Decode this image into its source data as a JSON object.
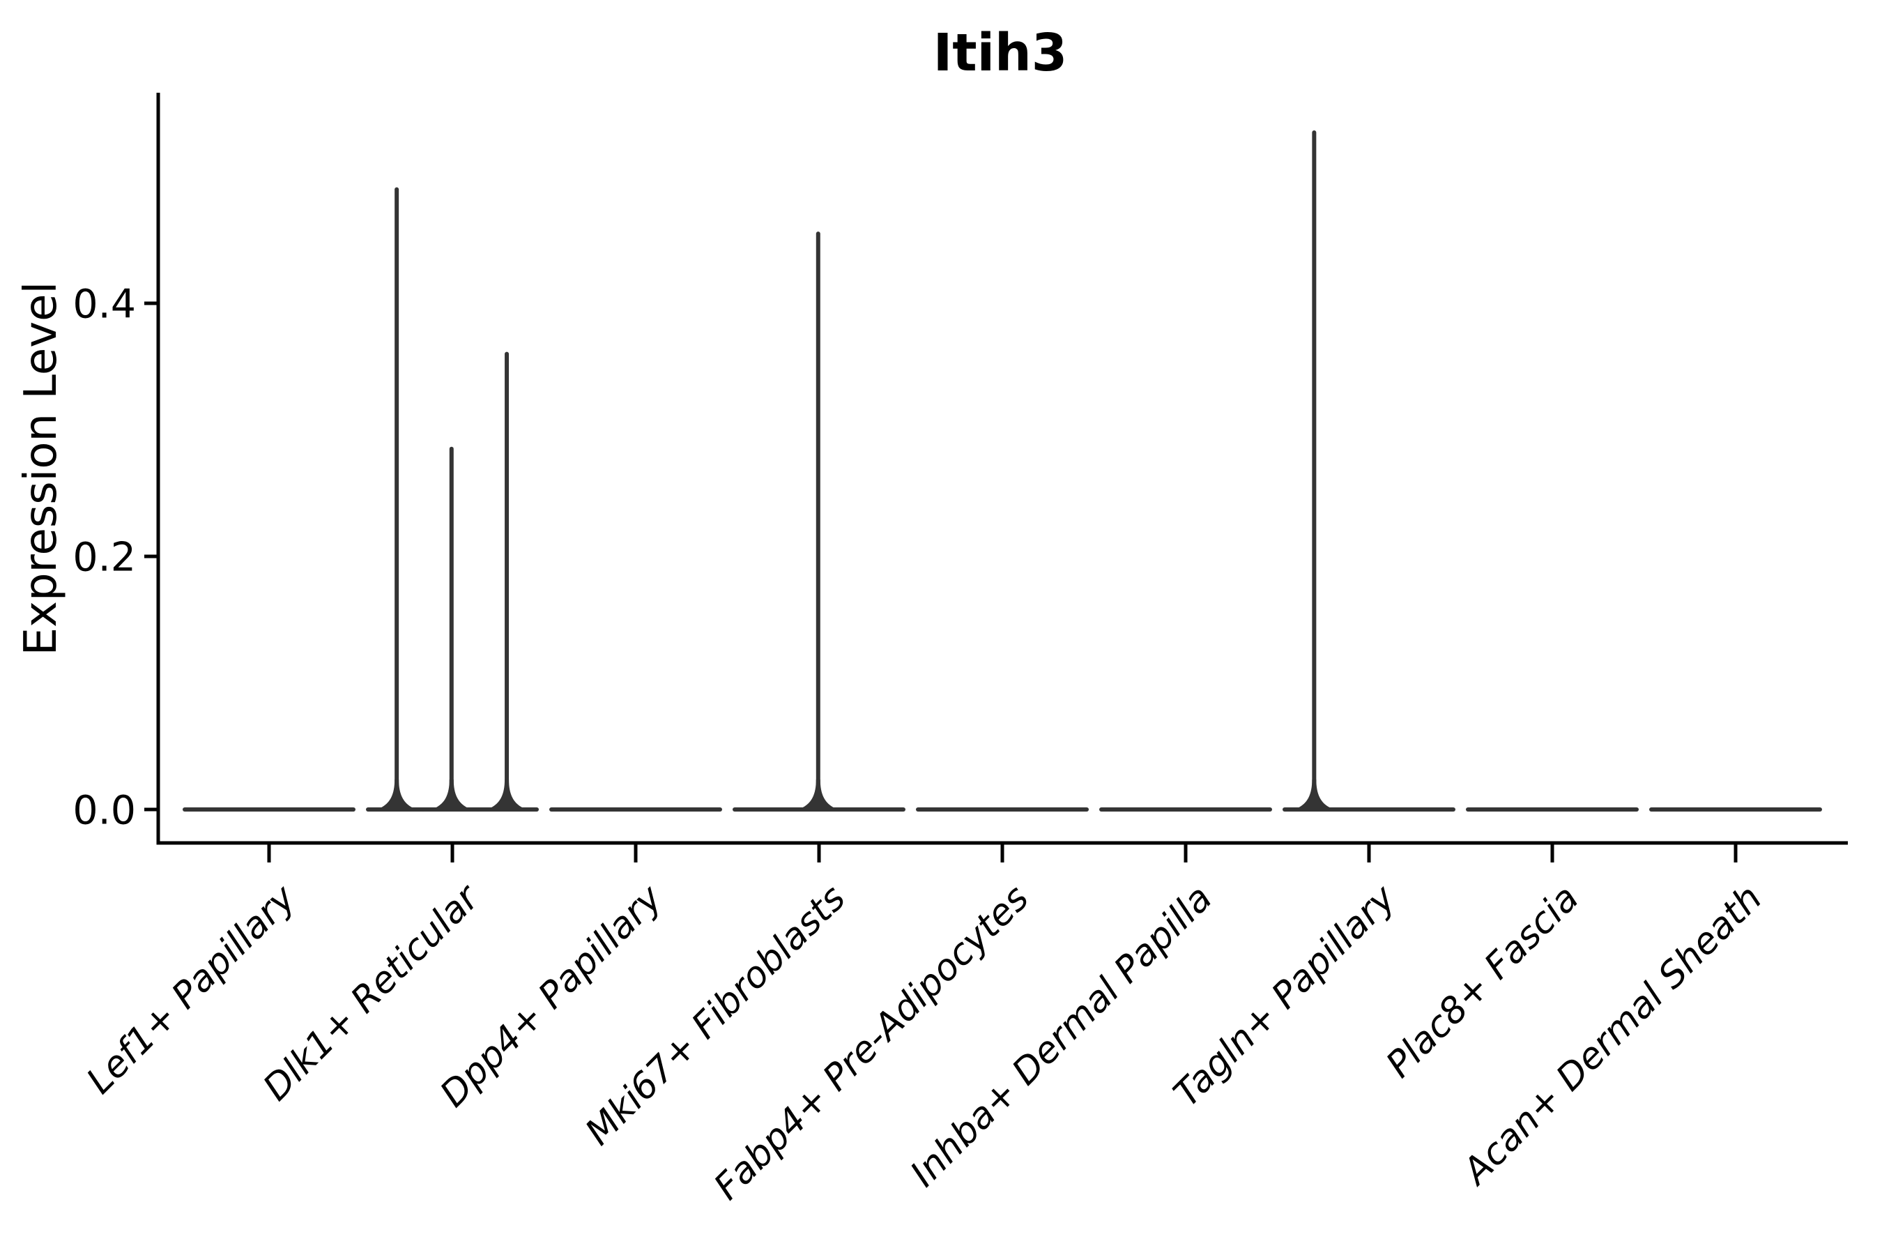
{
  "chart_data": {
    "type": "violin",
    "title": "Itih3",
    "xlabel": "",
    "ylabel": "Expression Level",
    "grid": false,
    "legend": false,
    "ylim": [
      -0.027,
      0.565
    ],
    "yticks": [
      0.0,
      0.2,
      0.4
    ],
    "y_tick_labels": [
      "0.0",
      "0.2",
      "0.4"
    ],
    "categories": [
      "Lef1+ Papillary",
      "Dlk1+ Reticular",
      "Dpp4+ Papillary",
      "Mki67+ Fibroblasts",
      "Fabp4+ Pre-Adipocytes",
      "Inhba+ Dermal Papilla",
      "Tagln+ Papillary",
      "Plac8+ Fascia",
      "Acan+ Dermal Sheath"
    ],
    "violins": [
      {
        "category": "Lef1+ Papillary",
        "baseline_value": 0,
        "spikes": []
      },
      {
        "category": "Dlk1+ Reticular",
        "baseline_value": 0,
        "spikes": [
          {
            "pos": -0.66,
            "value": 0.49
          },
          {
            "pos": -0.01,
            "value": 0.285
          },
          {
            "pos": 0.645,
            "value": 0.36
          }
        ]
      },
      {
        "category": "Dpp4+ Papillary",
        "baseline_value": 0,
        "spikes": []
      },
      {
        "category": "Mki67+ Fibroblasts",
        "baseline_value": 0,
        "spikes": [
          {
            "pos": -0.01,
            "value": 0.455
          }
        ]
      },
      {
        "category": "Fabp4+ Pre-Adipocytes",
        "baseline_value": 0,
        "spikes": []
      },
      {
        "category": "Inhba+ Dermal Papilla",
        "baseline_value": 0,
        "spikes": []
      },
      {
        "category": "Tagln+ Papillary",
        "baseline_value": 0,
        "spikes": [
          {
            "pos": -0.65,
            "value": 0.535
          }
        ]
      },
      {
        "category": "Plac8+ Fascia",
        "baseline_value": 0,
        "spikes": []
      },
      {
        "category": "Acan+ Dermal Sheath",
        "baseline_value": 0,
        "spikes": []
      }
    ],
    "colors": {
      "violin_stroke": "#343434",
      "axis": "#000000",
      "background": "#ffffff"
    }
  }
}
